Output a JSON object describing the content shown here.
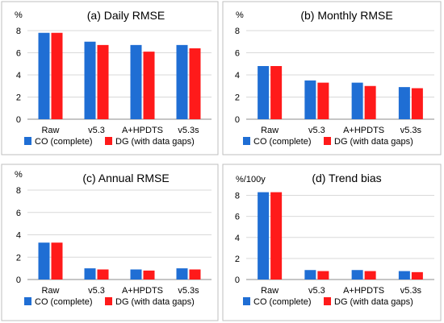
{
  "colors": {
    "co": "#1f6ed4",
    "dg": "#ff1a1a",
    "panel_border": "#bfbfbf",
    "grid": "#d9d9d9",
    "axis": "#8c8c8c",
    "text": "#000000"
  },
  "chart_data": [
    {
      "type": "bar",
      "title": "(a) Daily RMSE",
      "ylabel": "%",
      "ylim": [
        0,
        8
      ],
      "yticks": [
        "0",
        "2",
        "4",
        "6",
        "8"
      ],
      "grid": true,
      "legend_position": "bottom",
      "categories": [
        "Raw",
        "v5.3",
        "A+HPDTS",
        "v5.3s"
      ],
      "series": [
        {
          "name": "CO (complete)",
          "color": "#1f6ed4",
          "values": [
            7.8,
            7.0,
            6.7,
            6.7
          ]
        },
        {
          "name": "DG (with data gaps)",
          "color": "#ff1a1a",
          "values": [
            7.8,
            6.7,
            6.1,
            6.4
          ]
        }
      ]
    },
    {
      "type": "bar",
      "title": "(b) Monthly RMSE",
      "ylabel": "%",
      "ylim": [
        0,
        8
      ],
      "yticks": [
        "0",
        "2",
        "4",
        "6",
        "8"
      ],
      "grid": true,
      "legend_position": "bottom",
      "categories": [
        "Raw",
        "v5.3",
        "A+HPDTS",
        "v5.3s"
      ],
      "series": [
        {
          "name": "CO (complete)",
          "color": "#1f6ed4",
          "values": [
            4.8,
            3.5,
            3.3,
            2.9
          ]
        },
        {
          "name": "DG (with data gaps)",
          "color": "#ff1a1a",
          "values": [
            4.8,
            3.3,
            3.0,
            2.8
          ]
        }
      ]
    },
    {
      "type": "bar",
      "title": "(c) Annual RMSE",
      "ylabel": "%",
      "ylim": [
        0,
        8
      ],
      "yticks": [
        "0",
        "2",
        "4",
        "6",
        "8"
      ],
      "grid": true,
      "legend_position": "bottom",
      "categories": [
        "Raw",
        "v5.3",
        "A+HPDTS",
        "v5.3s"
      ],
      "series": [
        {
          "name": "CO (complete)",
          "color": "#1f6ed4",
          "values": [
            3.3,
            1.0,
            0.9,
            1.0
          ]
        },
        {
          "name": "DG (with data gaps)",
          "color": "#ff1a1a",
          "values": [
            3.3,
            0.9,
            0.8,
            0.9
          ]
        }
      ]
    },
    {
      "type": "bar",
      "title": "(d) Trend bias",
      "ylabel": "%/100y",
      "ylim": [
        0,
        9
      ],
      "yticks": [
        "0",
        "2",
        "4",
        "6",
        "8"
      ],
      "grid": true,
      "legend_position": "bottom",
      "categories": [
        "Raw",
        "v5.3",
        "A+HPDTS",
        "v5.3s"
      ],
      "series": [
        {
          "name": "CO (complete)",
          "color": "#1f6ed4",
          "values": [
            8.3,
            0.9,
            0.9,
            0.8
          ]
        },
        {
          "name": "DG (with data gaps)",
          "color": "#ff1a1a",
          "values": [
            8.3,
            0.8,
            0.8,
            0.7
          ]
        }
      ]
    }
  ]
}
